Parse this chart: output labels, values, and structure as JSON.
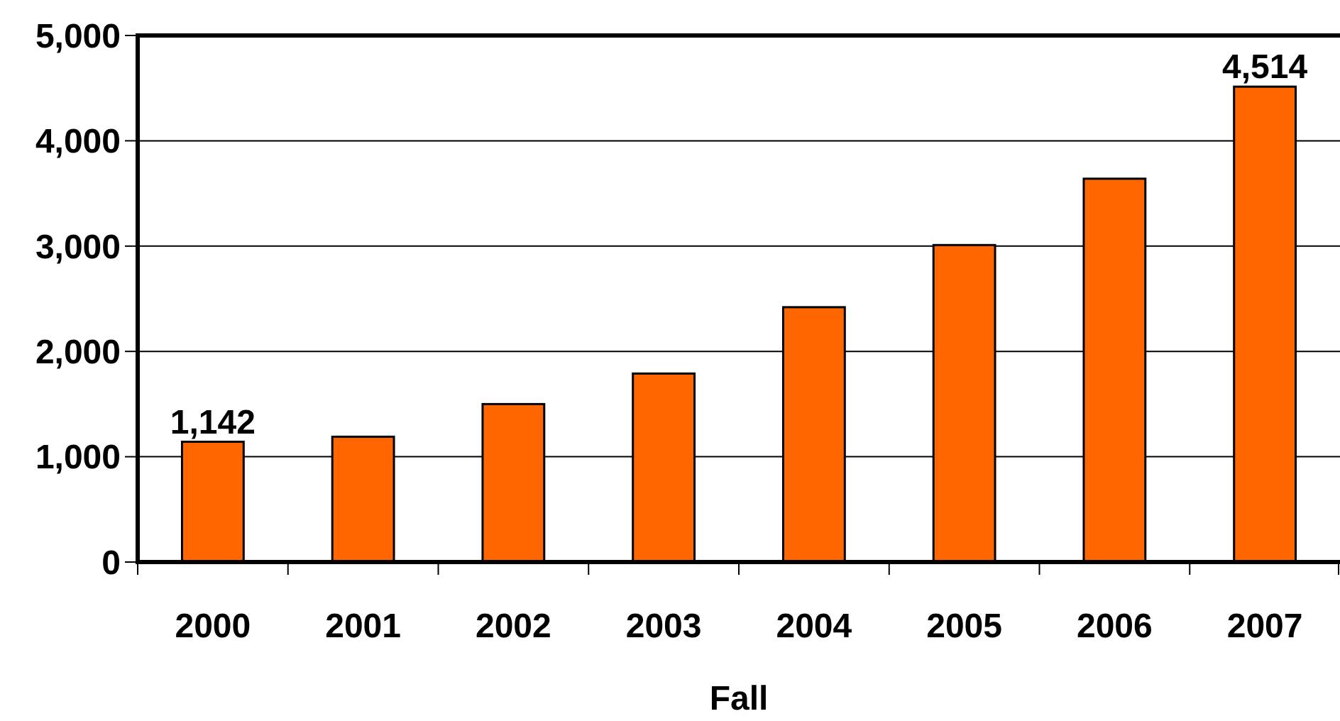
{
  "chart_data": {
    "type": "bar",
    "xlabel": "Fall",
    "categories": [
      "2000",
      "2001",
      "2002",
      "2003",
      "2004",
      "2005",
      "2006",
      "2007"
    ],
    "values": [
      1142,
      1190,
      1500,
      1790,
      2420,
      3010,
      3640,
      4514
    ],
    "value_labels": [
      "1,142",
      null,
      null,
      null,
      null,
      null,
      null,
      "4,514"
    ],
    "color": "#ff6600",
    "ylim": [
      0,
      5000
    ],
    "yticks": [
      0,
      {
        "value": 1000,
        "label": "1,000"
      },
      {
        "value": 2000,
        "label": "2,000"
      },
      {
        "value": 3000,
        "label": "3,000"
      },
      {
        "value": 4000,
        "label": "4,000"
      },
      {
        "value": 5000,
        "label": "5,000"
      }
    ],
    "grid": "y"
  }
}
